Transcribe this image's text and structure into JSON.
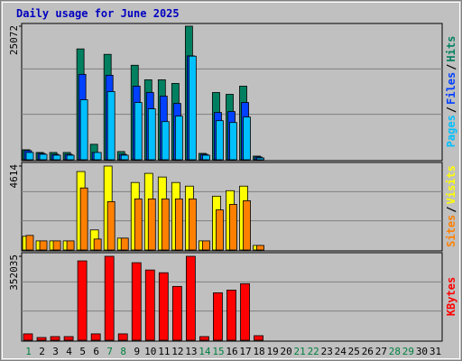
{
  "chart_data": [
    {
      "type": "bar",
      "title": "Daily usage for June 2025",
      "ylim": [
        0,
        25072
      ],
      "yticks": [
        25072
      ],
      "grid": true,
      "legend_separator": "/",
      "series": [
        {
          "name": "Hits",
          "color": "#008060",
          "values": [
            1876,
            1365,
            1365,
            1365,
            20808,
            2900,
            19785,
            1535,
            17738,
            15010,
            15010,
            14327,
            25072,
            1194,
            12621,
            12280,
            13815,
            682,
            0,
            0,
            0,
            0,
            0,
            0,
            0,
            0,
            0,
            0,
            0,
            0,
            0
          ]
        },
        {
          "name": "Files",
          "color": "#0040ff",
          "values": [
            1706,
            1194,
            1023,
            1023,
            16032,
            1365,
            15862,
            1023,
            13815,
            12621,
            11939,
            10574,
            19500,
            1023,
            8869,
            9040,
            10744,
            512,
            0,
            0,
            0,
            0,
            0,
            0,
            0,
            0,
            0,
            0,
            0,
            0,
            0
          ]
        },
        {
          "name": "Pages",
          "color": "#00c0ff",
          "values": [
            1365,
            1023,
            853,
            853,
            11257,
            1365,
            12792,
            853,
            10744,
            9552,
            7163,
            8187,
            19444,
            853,
            7334,
            6993,
            8016,
            341,
            0,
            0,
            0,
            0,
            0,
            0,
            0,
            0,
            0,
            0,
            0,
            0,
            0
          ]
        }
      ]
    },
    {
      "type": "bar",
      "ylim": [
        0,
        4614
      ],
      "yticks": [
        4614
      ],
      "grid": true,
      "legend_separator": "/",
      "series": [
        {
          "name": "Visits",
          "color": "#ffff00",
          "values": [
            752,
            501,
            501,
            501,
            4313,
            1103,
            4614,
            652,
            3711,
            4213,
            4012,
            3711,
            3511,
            501,
            2959,
            3260,
            3511,
            251,
            0,
            0,
            0,
            0,
            0,
            0,
            0,
            0,
            0,
            0,
            0,
            0,
            0
          ]
        },
        {
          "name": "Sites",
          "color": "#ff8000",
          "values": [
            802,
            501,
            501,
            501,
            3410,
            602,
            2658,
            652,
            2808,
            2808,
            2808,
            2808,
            2808,
            501,
            2207,
            2508,
            2708,
            251,
            0,
            0,
            0,
            0,
            0,
            0,
            0,
            0,
            0,
            0,
            0,
            0,
            0
          ]
        }
      ]
    },
    {
      "type": "bar",
      "ylim": [
        0,
        352035
      ],
      "yticks": [
        352035
      ],
      "grid": true,
      "categories": [
        "1",
        "2",
        "3",
        "4",
        "5",
        "6",
        "7",
        "8",
        "9",
        "10",
        "11",
        "12",
        "13",
        "14",
        "15",
        "16",
        "17",
        "18",
        "19",
        "20",
        "21",
        "22",
        "23",
        "24",
        "25",
        "26",
        "27",
        "28",
        "29",
        "30",
        "31"
      ],
      "category_colors": [
        "#008040",
        "#000000",
        "#000000",
        "#000000",
        "#000000",
        "#000000",
        "#008040",
        "#008040",
        "#000000",
        "#000000",
        "#000000",
        "#000000",
        "#000000",
        "#008040",
        "#008040",
        "#000000",
        "#000000",
        "#000000",
        "#000000",
        "#000000",
        "#008040",
        "#008040",
        "#000000",
        "#000000",
        "#000000",
        "#000000",
        "#000000",
        "#008040",
        "#008040",
        "#000000",
        "#000000"
      ],
      "series": [
        {
          "name": "KBytes",
          "color": "#ff0000",
          "values": [
            26785,
            11479,
            15306,
            15306,
            332902,
            26785,
            352035,
            26785,
            325248,
            294636,
            283157,
            225761,
            352035,
            15306,
            198978,
            210457,
            237240,
            19132,
            0,
            0,
            0,
            0,
            0,
            0,
            0,
            0,
            0,
            0,
            0,
            0,
            0
          ]
        }
      ]
    }
  ]
}
